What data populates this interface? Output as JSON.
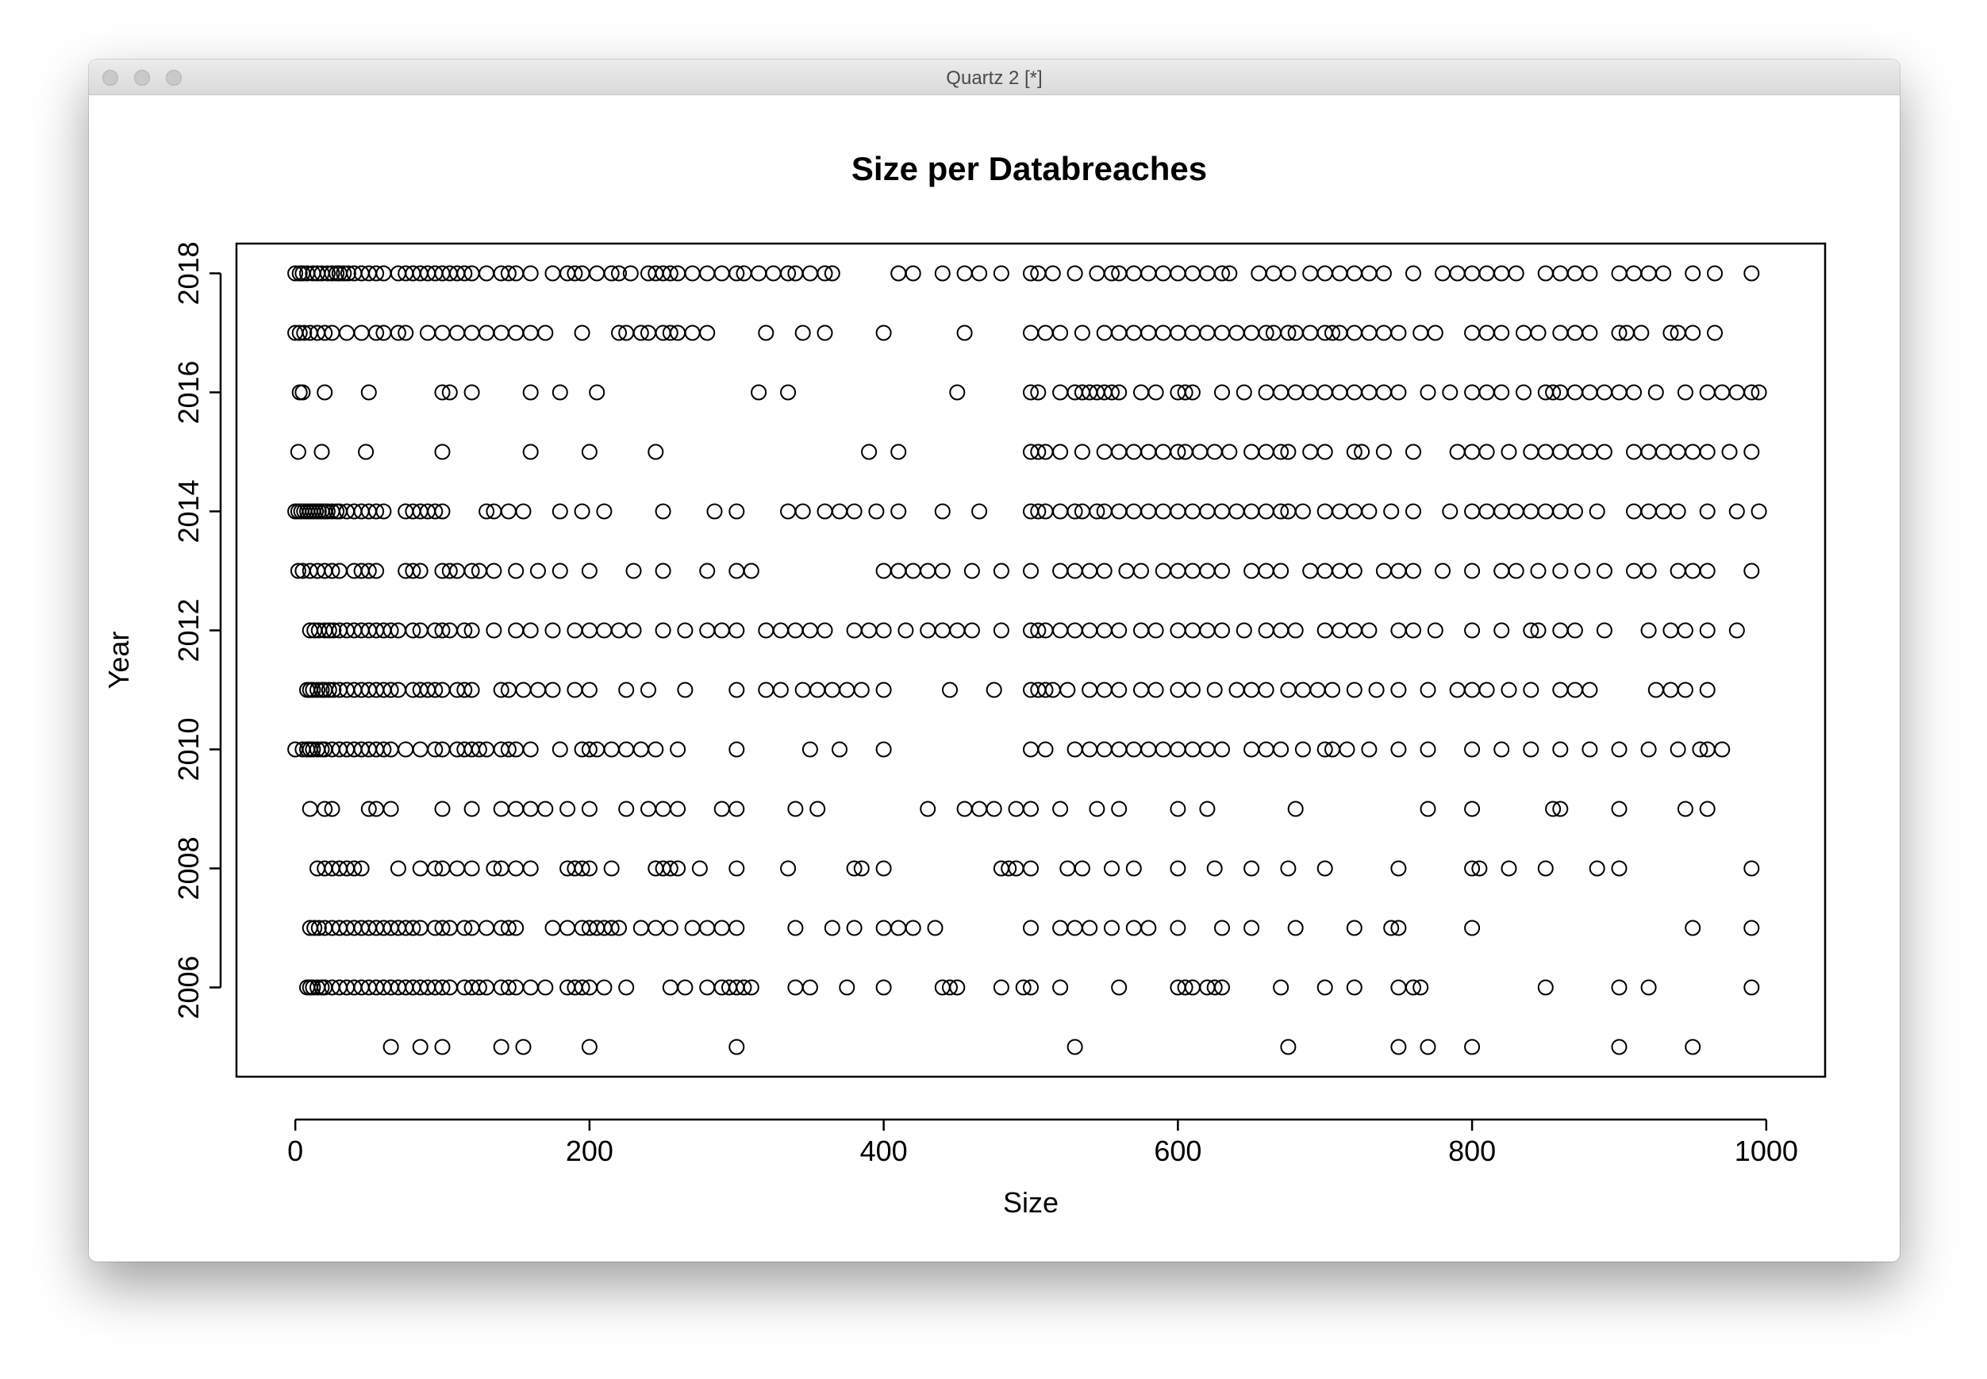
{
  "window": {
    "title": "Quartz 2 [*]"
  },
  "chart_data": {
    "type": "scatter",
    "title": "Size per Databreaches",
    "xlabel": "Size",
    "ylabel": "Year",
    "xlim": [
      -40,
      1040
    ],
    "ylim": [
      2004.5,
      2018.5
    ],
    "xticks": [
      0,
      200,
      400,
      600,
      800,
      1000
    ],
    "yticks": [
      2006,
      2008,
      2010,
      2012,
      2014,
      2016,
      2018
    ],
    "marker": "open-circle",
    "color": "#000000",
    "series": [
      {
        "year": 2018,
        "x": [
          0,
          3,
          5,
          8,
          12,
          15,
          18,
          22,
          25,
          28,
          30,
          33,
          36,
          40,
          45,
          50,
          55,
          60,
          70,
          75,
          80,
          85,
          90,
          95,
          100,
          105,
          110,
          115,
          120,
          130,
          140,
          145,
          150,
          160,
          175,
          185,
          190,
          195,
          205,
          215,
          220,
          228,
          240,
          245,
          250,
          255,
          260,
          270,
          280,
          290,
          300,
          305,
          315,
          325,
          335,
          340,
          350,
          360,
          365,
          410,
          420,
          440,
          455,
          465,
          480,
          500,
          505,
          515,
          530,
          545,
          555,
          560,
          570,
          580,
          590,
          600,
          610,
          620,
          630,
          635,
          655,
          665,
          675,
          690,
          700,
          710,
          720,
          730,
          740,
          760,
          780,
          790,
          800,
          810,
          820,
          830,
          850,
          860,
          870,
          880,
          900,
          910,
          920,
          930,
          950,
          965,
          990
        ]
      },
      {
        "year": 2017,
        "x": [
          0,
          3,
          6,
          10,
          15,
          20,
          25,
          35,
          45,
          55,
          60,
          70,
          75,
          90,
          100,
          110,
          120,
          130,
          140,
          150,
          160,
          170,
          195,
          220,
          225,
          235,
          240,
          250,
          255,
          260,
          270,
          280,
          320,
          345,
          360,
          400,
          455,
          500,
          510,
          520,
          535,
          550,
          560,
          570,
          580,
          590,
          600,
          610,
          620,
          630,
          640,
          650,
          660,
          665,
          675,
          680,
          690,
          700,
          705,
          710,
          720,
          730,
          740,
          750,
          765,
          775,
          800,
          810,
          820,
          835,
          845,
          860,
          870,
          880,
          900,
          905,
          915,
          935,
          940,
          950,
          965
        ]
      },
      {
        "year": 2016,
        "x": [
          3,
          5,
          20,
          50,
          100,
          105,
          120,
          160,
          180,
          205,
          315,
          335,
          450,
          500,
          505,
          520,
          530,
          535,
          540,
          545,
          550,
          555,
          560,
          575,
          585,
          600,
          605,
          610,
          630,
          645,
          660,
          670,
          680,
          690,
          700,
          710,
          720,
          730,
          740,
          750,
          770,
          785,
          800,
          810,
          820,
          835,
          850,
          855,
          860,
          870,
          880,
          890,
          900,
          910,
          925,
          945,
          960,
          970,
          980,
          990,
          995
        ]
      },
      {
        "year": 2015,
        "x": [
          2,
          18,
          48,
          100,
          160,
          200,
          245,
          390,
          410,
          500,
          505,
          510,
          520,
          535,
          550,
          560,
          570,
          580,
          590,
          600,
          605,
          615,
          625,
          635,
          650,
          660,
          670,
          675,
          690,
          700,
          720,
          725,
          740,
          760,
          790,
          800,
          810,
          825,
          840,
          850,
          860,
          870,
          880,
          890,
          910,
          920,
          930,
          940,
          950,
          960,
          975,
          990
        ]
      },
      {
        "year": 2014,
        "x": [
          0,
          2,
          4,
          6,
          8,
          10,
          12,
          14,
          16,
          18,
          20,
          22,
          25,
          28,
          30,
          35,
          40,
          45,
          50,
          55,
          60,
          75,
          80,
          85,
          90,
          95,
          100,
          130,
          135,
          145,
          155,
          180,
          195,
          210,
          250,
          285,
          300,
          335,
          345,
          360,
          370,
          380,
          395,
          410,
          440,
          465,
          500,
          505,
          510,
          520,
          530,
          535,
          545,
          550,
          560,
          570,
          580,
          590,
          600,
          610,
          620,
          630,
          640,
          650,
          660,
          670,
          675,
          685,
          700,
          710,
          720,
          730,
          745,
          760,
          785,
          800,
          810,
          820,
          830,
          840,
          850,
          860,
          870,
          885,
          910,
          920,
          930,
          940,
          960,
          980,
          995
        ]
      },
      {
        "year": 2013,
        "x": [
          2,
          5,
          10,
          15,
          20,
          25,
          30,
          40,
          45,
          50,
          55,
          75,
          80,
          85,
          100,
          105,
          110,
          120,
          125,
          135,
          150,
          165,
          180,
          200,
          230,
          250,
          280,
          300,
          310,
          400,
          410,
          420,
          430,
          440,
          460,
          480,
          500,
          520,
          530,
          540,
          550,
          565,
          575,
          590,
          600,
          610,
          620,
          630,
          650,
          660,
          670,
          690,
          700,
          710,
          720,
          740,
          750,
          760,
          780,
          800,
          820,
          830,
          845,
          860,
          875,
          890,
          910,
          920,
          940,
          950,
          960,
          990
        ]
      },
      {
        "year": 2012,
        "x": [
          10,
          13,
          16,
          20,
          23,
          26,
          30,
          35,
          40,
          45,
          50,
          55,
          60,
          65,
          70,
          80,
          85,
          95,
          100,
          105,
          115,
          120,
          135,
          150,
          160,
          175,
          190,
          200,
          210,
          220,
          230,
          250,
          265,
          280,
          290,
          300,
          320,
          330,
          340,
          350,
          360,
          380,
          390,
          400,
          415,
          430,
          440,
          450,
          460,
          480,
          500,
          505,
          510,
          520,
          530,
          540,
          550,
          560,
          575,
          585,
          600,
          610,
          620,
          630,
          645,
          660,
          670,
          680,
          700,
          710,
          720,
          730,
          750,
          760,
          775,
          800,
          820,
          840,
          845,
          860,
          870,
          890,
          920,
          935,
          945,
          960,
          980
        ]
      },
      {
        "year": 2011,
        "x": [
          8,
          10,
          12,
          15,
          18,
          20,
          23,
          26,
          30,
          35,
          40,
          45,
          50,
          55,
          60,
          65,
          70,
          80,
          85,
          90,
          95,
          100,
          110,
          115,
          120,
          140,
          145,
          155,
          165,
          175,
          190,
          200,
          225,
          240,
          265,
          300,
          320,
          330,
          345,
          355,
          365,
          375,
          385,
          400,
          445,
          475,
          500,
          505,
          510,
          515,
          525,
          540,
          550,
          560,
          575,
          585,
          600,
          610,
          625,
          640,
          650,
          660,
          675,
          685,
          695,
          705,
          720,
          735,
          750,
          770,
          790,
          800,
          810,
          825,
          840,
          860,
          870,
          880,
          925,
          935,
          945,
          960
        ]
      },
      {
        "year": 2010,
        "x": [
          0,
          5,
          8,
          10,
          12,
          15,
          18,
          20,
          25,
          30,
          35,
          40,
          45,
          50,
          55,
          60,
          65,
          75,
          85,
          95,
          100,
          110,
          115,
          120,
          125,
          130,
          140,
          145,
          150,
          160,
          180,
          195,
          200,
          205,
          215,
          225,
          235,
          245,
          260,
          300,
          350,
          370,
          400,
          500,
          510,
          530,
          540,
          550,
          560,
          570,
          580,
          590,
          600,
          610,
          620,
          630,
          650,
          660,
          670,
          685,
          700,
          705,
          715,
          730,
          750,
          770,
          800,
          820,
          840,
          860,
          880,
          900,
          920,
          940,
          955,
          960,
          970
        ]
      },
      {
        "year": 2009,
        "x": [
          10,
          20,
          25,
          50,
          55,
          65,
          100,
          120,
          140,
          150,
          160,
          170,
          185,
          200,
          225,
          240,
          250,
          260,
          290,
          300,
          340,
          355,
          430,
          455,
          465,
          475,
          490,
          500,
          520,
          545,
          560,
          600,
          620,
          680,
          770,
          800,
          855,
          860,
          900,
          945,
          960
        ]
      },
      {
        "year": 2008,
        "x": [
          15,
          20,
          25,
          30,
          35,
          40,
          45,
          70,
          85,
          95,
          100,
          110,
          120,
          135,
          140,
          150,
          160,
          185,
          190,
          195,
          200,
          215,
          245,
          250,
          255,
          260,
          275,
          300,
          335,
          380,
          385,
          400,
          480,
          485,
          490,
          500,
          525,
          535,
          555,
          570,
          600,
          625,
          650,
          675,
          700,
          750,
          800,
          805,
          825,
          850,
          885,
          900,
          990
        ]
      },
      {
        "year": 2007,
        "x": [
          10,
          13,
          16,
          20,
          25,
          30,
          35,
          40,
          45,
          50,
          55,
          60,
          65,
          70,
          75,
          80,
          85,
          95,
          100,
          105,
          115,
          120,
          130,
          140,
          145,
          150,
          175,
          185,
          195,
          200,
          205,
          210,
          215,
          220,
          235,
          245,
          255,
          270,
          280,
          290,
          300,
          340,
          365,
          380,
          400,
          410,
          420,
          435,
          500,
          520,
          530,
          540,
          555,
          570,
          580,
          600,
          630,
          650,
          680,
          720,
          745,
          750,
          800,
          950,
          990
        ]
      },
      {
        "year": 2006,
        "x": [
          8,
          10,
          12,
          15,
          18,
          20,
          25,
          30,
          35,
          40,
          45,
          50,
          55,
          60,
          65,
          70,
          75,
          80,
          85,
          90,
          95,
          100,
          105,
          115,
          120,
          125,
          130,
          140,
          145,
          150,
          160,
          170,
          185,
          190,
          195,
          200,
          210,
          225,
          255,
          265,
          280,
          290,
          295,
          300,
          305,
          310,
          340,
          350,
          375,
          400,
          440,
          445,
          450,
          480,
          495,
          500,
          520,
          560,
          600,
          605,
          610,
          620,
          625,
          630,
          670,
          700,
          720,
          750,
          760,
          765,
          850,
          900,
          920,
          990
        ]
      },
      {
        "year": 2005,
        "x": [
          65,
          85,
          100,
          140,
          155,
          200,
          300,
          530,
          675,
          750,
          770,
          800,
          900,
          950
        ]
      }
    ]
  }
}
